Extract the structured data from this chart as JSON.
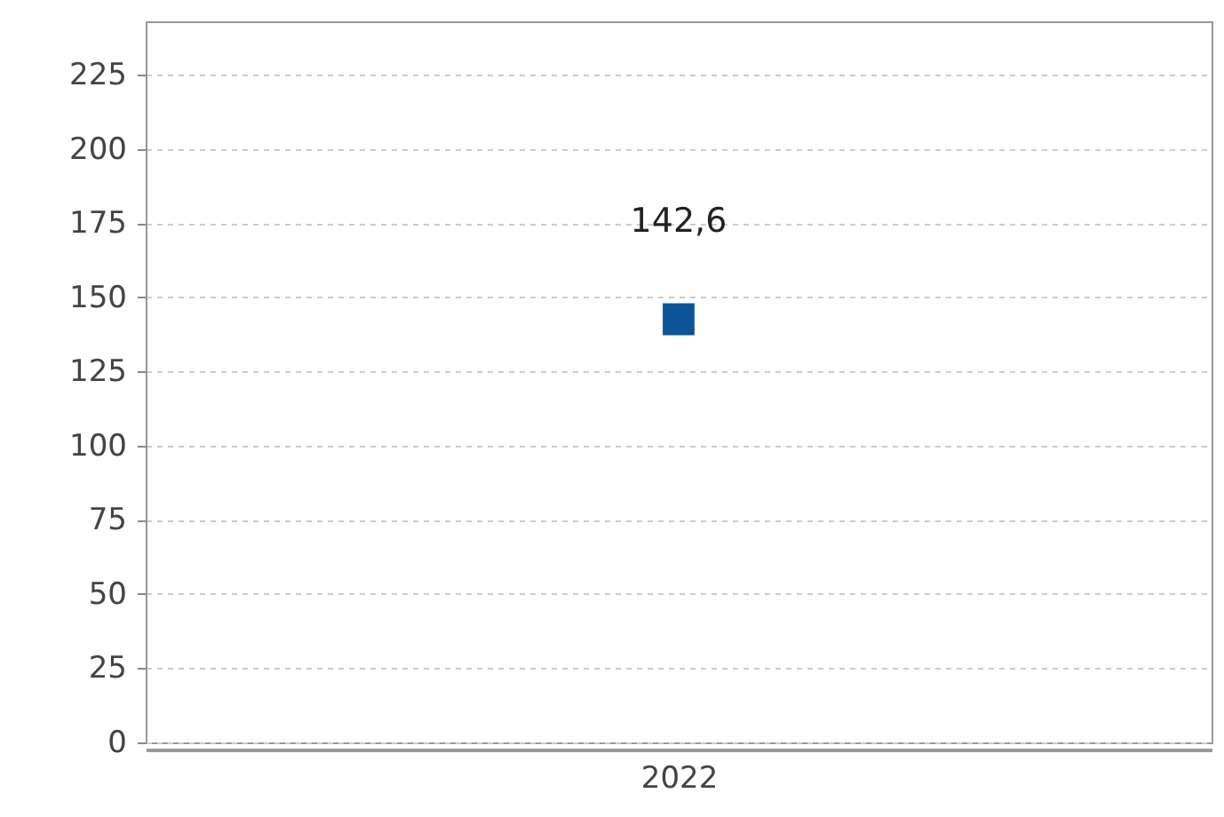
{
  "chart_data": {
    "type": "scatter",
    "categories": [
      "2022"
    ],
    "series": [
      {
        "color": "#0b5596",
        "values": [
          142.6
        ],
        "value_labels": [
          "142,6"
        ]
      }
    ],
    "ylim": [
      0,
      243
    ],
    "yticks": [
      0,
      25,
      50,
      75,
      100,
      125,
      150,
      175,
      200,
      225
    ],
    "grid": "y",
    "marker": "square"
  }
}
